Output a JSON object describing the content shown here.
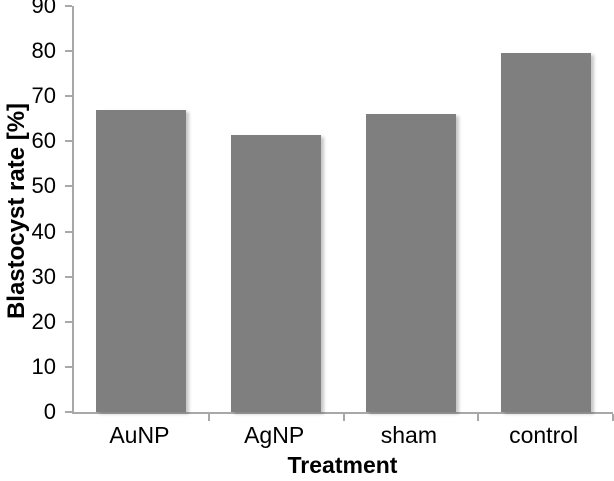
{
  "chart_data": {
    "type": "bar",
    "title": "",
    "xlabel": "Treatment",
    "ylabel": "Blastocyst rate [%]",
    "categories": [
      "AuNP",
      "AgNP",
      "sham",
      "control"
    ],
    "values": [
      67,
      61.5,
      66,
      79.5
    ],
    "ylim": [
      0,
      90
    ],
    "ytick_step": 10,
    "ytick_labels": [
      "0",
      "10",
      "20",
      "30",
      "40",
      "50",
      "60",
      "70",
      "80",
      "90"
    ],
    "grid": "off",
    "legend": "none",
    "bar_color": "#7f7f7f",
    "axis_color": "#a8a8a8",
    "text_color": "#000000",
    "background_color": "#ffffff"
  }
}
